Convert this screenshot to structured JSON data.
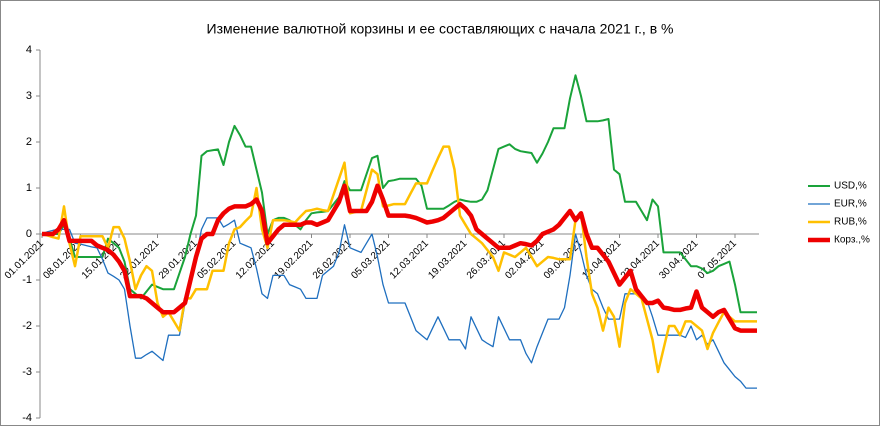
{
  "chart_data": {
    "type": "line",
    "title": "Изменение валютной корзины и ее составляющих с начала 2021 г., в %",
    "categories": [
      "01.01.2021",
      null,
      null,
      null,
      null,
      null,
      null,
      "08.01.2021",
      null,
      null,
      null,
      null,
      null,
      null,
      "15.01.2021",
      null,
      null,
      null,
      null,
      null,
      null,
      "22.01.2021",
      null,
      null,
      null,
      null,
      null,
      null,
      "29.01.2021",
      null,
      null,
      null,
      null,
      null,
      null,
      "05.02.2021",
      null,
      null,
      null,
      null,
      null,
      null,
      "12.02.2021",
      null,
      null,
      null,
      null,
      null,
      null,
      "19.02.2021",
      null,
      null,
      null,
      null,
      null,
      null,
      "26.02.2021",
      null,
      null,
      null,
      null,
      null,
      null,
      "05.03.2021",
      null,
      null,
      null,
      null,
      null,
      null,
      "12.03.2021",
      null,
      null,
      null,
      null,
      null,
      null,
      "19.03.2021",
      null,
      null,
      null,
      null,
      null,
      null,
      "26.03.2021",
      null,
      null,
      null,
      null,
      null,
      null,
      "02.04.2021",
      null,
      null,
      null,
      null,
      null,
      null,
      "09.04.2021",
      null,
      null,
      null,
      null,
      null,
      null,
      "16.04.2021",
      null,
      null,
      null,
      null,
      null,
      null,
      "23.04.2021",
      null,
      null,
      null,
      null,
      null,
      null,
      "30.04.2021",
      null,
      null,
      null,
      null,
      null,
      null,
      "07.05.2021",
      null,
      null,
      null,
      null
    ],
    "series": [
      {
        "name": "USD,%",
        "color": "#1aa33a",
        "width": 2,
        "values": [
          0,
          0,
          0,
          0,
          0.2,
          -0.1,
          -0.5,
          -0.5,
          -0.5,
          -0.5,
          -0.5,
          -0.5,
          -0.1,
          -0.2,
          -0.3,
          -0.6,
          -1.2,
          -1.3,
          -1.4,
          -1.25,
          -1.1,
          -1.15,
          -1.2,
          -1.2,
          -1.2,
          -0.85,
          -0.5,
          0,
          0.4,
          1.7,
          1.8,
          1.82,
          1.84,
          1.5,
          2.0,
          2.35,
          2.15,
          1.9,
          1.9,
          1.4,
          0.9,
          0,
          0.3,
          0.35,
          0.35,
          0.3,
          0.2,
          0.1,
          0.3,
          0.45,
          0.47,
          0.48,
          0.5,
          0.65,
          0.8,
          1.15,
          0.95,
          0.95,
          0.95,
          1.3,
          1.65,
          1.7,
          1.0,
          1.15,
          1.17,
          1.2,
          1.2,
          1.2,
          1.2,
          1.05,
          0.55,
          0.55,
          0.55,
          0.55,
          0.62,
          0.7,
          0.75,
          0.72,
          0.7,
          0.7,
          0.75,
          0.95,
          1.4,
          1.85,
          1.9,
          1.95,
          1.85,
          1.8,
          1.78,
          1.76,
          1.55,
          1.75,
          2.0,
          2.3,
          2.3,
          2.3,
          2.95,
          3.45,
          3.0,
          2.45,
          2.45,
          2.45,
          2.47,
          2.5,
          1.4,
          1.3,
          0.7,
          0.7,
          0.7,
          0.5,
          0.3,
          0.75,
          0.6,
          -0.4,
          -0.4,
          -0.4,
          -0.4,
          -0.55,
          -0.7,
          -0.7,
          -0.75,
          -0.85,
          -0.8,
          -0.7,
          -0.65,
          -0.6,
          -1.1,
          -1.7,
          -1.7,
          -1.7,
          -1.7
        ]
      },
      {
        "name": "EUR,%",
        "color": "#1f6fbf",
        "width": 1.3,
        "values": [
          0,
          0.05,
          0.08,
          0.1,
          0.1,
          0.1,
          -0.2,
          -0.22,
          -0.25,
          -0.28,
          -0.3,
          -0.55,
          -0.85,
          -0.92,
          -1.0,
          -1.2,
          -2.0,
          -2.7,
          -2.7,
          -2.62,
          -2.55,
          -2.65,
          -2.75,
          -2.2,
          -2.2,
          -2.2,
          -1.5,
          -1.0,
          -0.5,
          0.1,
          0.35,
          0.35,
          0.35,
          0.15,
          0.22,
          0.3,
          -0.2,
          -0.25,
          -0.3,
          -0.75,
          -1.3,
          -1.4,
          -0.9,
          -0.9,
          -0.9,
          -1.1,
          -1.15,
          -1.2,
          -1.4,
          -1.4,
          -1.4,
          -0.9,
          -0.8,
          -0.7,
          -0.4,
          0.2,
          -0.3,
          -0.35,
          -0.4,
          -0.2,
          0.0,
          -0.5,
          -1.1,
          -1.5,
          -1.5,
          -1.5,
          -1.5,
          -1.8,
          -2.1,
          -2.2,
          -2.3,
          -2.05,
          -1.8,
          -2.05,
          -2.3,
          -2.3,
          -2.3,
          -2.5,
          -1.8,
          -2.05,
          -2.3,
          -2.38,
          -2.45,
          -1.8,
          -2.05,
          -2.3,
          -2.3,
          -2.3,
          -2.6,
          -2.8,
          -2.45,
          -2.15,
          -1.85,
          -1.85,
          -1.85,
          -1.6,
          -0.9,
          0.0,
          -0.4,
          -0.9,
          -1.2,
          -1.3,
          -1.6,
          -1.85,
          -1.85,
          -1.85,
          -1.3,
          -1.3,
          -1.3,
          -1.38,
          -1.45,
          -1.8,
          -2.2,
          -2.2,
          -2.2,
          -2.2,
          -2.2,
          -2.25,
          -2.0,
          -2.3,
          -2.2,
          -2.4,
          -2.3,
          -2.55,
          -2.8,
          -2.95,
          -3.1,
          -3.2,
          -3.35,
          -3.35,
          -3.35
        ]
      },
      {
        "name": "RUB,%",
        "color": "#ffc000",
        "width": 2.5,
        "values": [
          0,
          -0.03,
          -0.07,
          -0.1,
          0.6,
          -0.2,
          -0.7,
          -0.05,
          -0.05,
          -0.05,
          -0.05,
          -0.05,
          -0.3,
          0.15,
          0.15,
          -0.1,
          -0.6,
          -1.2,
          -0.9,
          -0.7,
          -0.8,
          -1.5,
          -1.8,
          -1.7,
          -1.9,
          -2.1,
          -1.4,
          -1.4,
          -1.2,
          -1.2,
          -1.2,
          -0.8,
          -0.8,
          -0.8,
          -0.2,
          0.1,
          0.15,
          0.28,
          0.4,
          1.0,
          0.1,
          -0.3,
          0.3,
          0.3,
          0.3,
          0.28,
          0.25,
          0.38,
          0.5,
          0.52,
          0.55,
          0.52,
          0.5,
          0.85,
          1.2,
          1.55,
          0.45,
          0.48,
          0.5,
          0.95,
          1.4,
          1.3,
          0.6,
          0.62,
          0.65,
          0.65,
          0.65,
          0.88,
          1.1,
          1.1,
          1.1,
          1.38,
          1.65,
          1.9,
          1.9,
          1.4,
          0.4,
          0.2,
          0,
          -0.1,
          -0.2,
          -0.35,
          -0.5,
          -0.8,
          -0.4,
          -0.45,
          -0.5,
          -0.4,
          -0.3,
          -0.5,
          -0.7,
          -0.6,
          -0.5,
          -0.52,
          -0.55,
          -0.55,
          -0.55,
          0.3,
          0.45,
          -0.5,
          -1.3,
          -1.6,
          -2.1,
          -1.6,
          -1.8,
          -2.45,
          -1.5,
          -1.2,
          -1.3,
          -1.4,
          -1.85,
          -2.3,
          -3.0,
          -2.5,
          -2.0,
          -2.0,
          -2.2,
          -1.9,
          -1.9,
          -2.0,
          -2.1,
          -2.5,
          -2.15,
          -1.92,
          -1.7,
          -1.8,
          -1.9,
          -1.9,
          -1.9,
          -1.9,
          -1.9
        ]
      },
      {
        "name": "Корз.,%",
        "color": "#ee0000",
        "width": 4.5,
        "values": [
          0,
          0,
          0,
          0.1,
          0.3,
          -0.15,
          -0.15,
          -0.15,
          -0.15,
          -0.15,
          -0.25,
          -0.3,
          -0.35,
          -0.45,
          -0.6,
          -0.8,
          -1.35,
          -1.35,
          -1.35,
          -1.4,
          -1.5,
          -1.6,
          -1.7,
          -1.7,
          -1.7,
          -1.6,
          -1.5,
          -1.0,
          -0.5,
          -0.1,
          0.0,
          0.0,
          0.3,
          0.45,
          0.55,
          0.6,
          0.6,
          0.6,
          0.65,
          0.75,
          0.5,
          -0.2,
          -0.05,
          0.1,
          0.2,
          0.2,
          0.2,
          0.2,
          0.25,
          0.25,
          0.2,
          0.25,
          0.3,
          0.5,
          0.7,
          1.05,
          0.5,
          0.5,
          0.5,
          0.5,
          0.7,
          1.05,
          0.75,
          0.4,
          0.4,
          0.4,
          0.4,
          0.38,
          0.35,
          0.3,
          0.25,
          0.27,
          0.3,
          0.35,
          0.45,
          0.55,
          0.65,
          0.55,
          0.4,
          0.1,
          0.0,
          -0.1,
          -0.2,
          -0.3,
          -0.3,
          -0.3,
          -0.25,
          -0.2,
          -0.22,
          -0.25,
          -0.15,
          0.0,
          0.05,
          0.1,
          0.2,
          0.35,
          0.5,
          0.3,
          0.45,
          0.0,
          -0.3,
          -0.3,
          -0.45,
          -0.6,
          -0.85,
          -1.1,
          -0.95,
          -0.8,
          -1.2,
          -1.35,
          -1.5,
          -1.5,
          -1.45,
          -1.6,
          -1.62,
          -1.65,
          -1.65,
          -1.62,
          -1.6,
          -1.25,
          -1.6,
          -1.7,
          -1.8,
          -1.7,
          -1.65,
          -1.85,
          -2.05,
          -2.1,
          -2.1,
          -2.1,
          -2.1
        ]
      }
    ],
    "ylim": [
      -4,
      4
    ],
    "yticks": [
      -4,
      -3,
      -2,
      -1,
      0,
      1,
      2,
      3,
      4
    ],
    "grid": false,
    "legend": "right"
  }
}
